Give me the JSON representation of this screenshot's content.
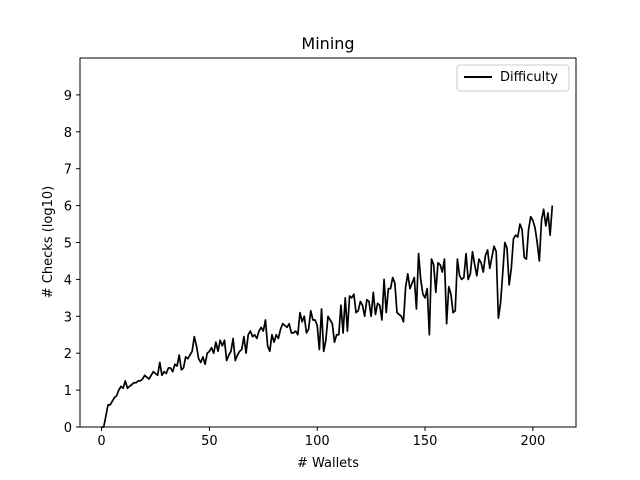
{
  "chart_data": {
    "type": "line",
    "title": "Mining",
    "xlabel": "# Wallets",
    "ylabel": "# Checks (log10)",
    "xlim": [
      -10,
      220
    ],
    "ylim": [
      0,
      10
    ],
    "xticks": [
      0,
      50,
      100,
      150,
      200
    ],
    "yticks": [
      0,
      1,
      2,
      3,
      4,
      5,
      6,
      7,
      8,
      9
    ],
    "grid": false,
    "legend_position": "upper-right",
    "line_color": "#000000",
    "series": [
      {
        "name": "Difficulty",
        "x": [
          0,
          1,
          2,
          3,
          4,
          5,
          6,
          7,
          8,
          9,
          10,
          11,
          12,
          13,
          14,
          15,
          16,
          17,
          18,
          19,
          20,
          21,
          22,
          23,
          24,
          25,
          26,
          27,
          28,
          29,
          30,
          31,
          32,
          33,
          34,
          35,
          36,
          37,
          38,
          39,
          40,
          41,
          42,
          43,
          44,
          45,
          46,
          47,
          48,
          49,
          50,
          51,
          52,
          53,
          54,
          55,
          56,
          57,
          58,
          59,
          60,
          61,
          62,
          63,
          64,
          65,
          66,
          67,
          68,
          69,
          70,
          71,
          72,
          73,
          74,
          75,
          76,
          77,
          78,
          79,
          80,
          81,
          82,
          83,
          84,
          85,
          86,
          87,
          88,
          89,
          90,
          91,
          92,
          93,
          94,
          95,
          96,
          97,
          98,
          99,
          100,
          101,
          102,
          103,
          104,
          105,
          106,
          107,
          108,
          109,
          110,
          111,
          112,
          113,
          114,
          115,
          116,
          117,
          118,
          119,
          120,
          121,
          122,
          123,
          124,
          125,
          126,
          127,
          128,
          129,
          130,
          131,
          132,
          133,
          134,
          135,
          136,
          137,
          138,
          139,
          140,
          141,
          142,
          143,
          144,
          145,
          146,
          147,
          148,
          149,
          150,
          151,
          152,
          153,
          154,
          155,
          156,
          157,
          158,
          159,
          160,
          161,
          162,
          163,
          164,
          165,
          166,
          167,
          168,
          169,
          170,
          171,
          172,
          173,
          174,
          175,
          176,
          177,
          178,
          179,
          180,
          181,
          182,
          183,
          184,
          185,
          186,
          187,
          188,
          189,
          190,
          191,
          192,
          193,
          194,
          195,
          196,
          197,
          198,
          199,
          200,
          201,
          202,
          203,
          204,
          205,
          206,
          207,
          208,
          209
        ],
        "values": [
          0.0,
          0.0,
          0.3,
          0.6,
          0.6,
          0.7,
          0.8,
          0.85,
          1.0,
          1.1,
          1.05,
          1.25,
          1.05,
          1.1,
          1.15,
          1.2,
          1.2,
          1.25,
          1.25,
          1.3,
          1.4,
          1.35,
          1.3,
          1.4,
          1.5,
          1.45,
          1.4,
          1.75,
          1.4,
          1.5,
          1.45,
          1.6,
          1.6,
          1.5,
          1.7,
          1.65,
          1.95,
          1.55,
          1.6,
          1.9,
          1.85,
          1.95,
          2.05,
          2.45,
          2.2,
          1.85,
          1.75,
          1.9,
          1.7,
          2.0,
          2.05,
          2.15,
          2.0,
          2.3,
          2.05,
          2.35,
          2.2,
          2.35,
          1.8,
          1.95,
          2.05,
          2.4,
          1.8,
          1.95,
          2.05,
          2.1,
          2.45,
          2.0,
          2.5,
          2.6,
          2.45,
          2.5,
          2.4,
          2.6,
          2.7,
          2.6,
          2.9,
          2.2,
          2.05,
          2.5,
          2.3,
          2.5,
          2.4,
          2.65,
          2.8,
          2.75,
          2.7,
          2.8,
          2.55,
          2.55,
          2.6,
          2.5,
          3.1,
          2.85,
          3.0,
          2.55,
          2.65,
          3.15,
          2.9,
          2.9,
          2.75,
          2.1,
          3.2,
          2.05,
          2.35,
          3.0,
          2.9,
          2.8,
          2.3,
          2.5,
          2.5,
          3.3,
          2.55,
          3.5,
          2.6,
          3.55,
          3.5,
          3.6,
          3.1,
          3.15,
          3.4,
          3.3,
          3.0,
          3.45,
          3.4,
          3.0,
          3.65,
          3.05,
          3.35,
          3.3,
          2.9,
          4.0,
          3.1,
          3.75,
          3.75,
          4.05,
          3.9,
          3.1,
          3.05,
          3.0,
          2.85,
          3.8,
          4.15,
          3.75,
          3.9,
          4.05,
          3.2,
          4.7,
          4.0,
          3.6,
          3.5,
          3.75,
          2.5,
          4.55,
          4.4,
          3.65,
          4.45,
          4.4,
          4.2,
          4.55,
          2.8,
          3.8,
          3.6,
          3.1,
          3.15,
          4.55,
          4.1,
          4.0,
          4.05,
          4.7,
          4.0,
          4.15,
          4.75,
          4.4,
          4.1,
          4.55,
          4.45,
          4.2,
          4.65,
          4.8,
          4.3,
          4.6,
          4.9,
          4.75,
          2.95,
          3.35,
          4.15,
          5.0,
          4.85,
          3.85,
          4.3,
          5.1,
          5.2,
          5.15,
          5.5,
          5.35,
          4.6,
          4.55,
          5.35,
          5.7,
          5.6,
          5.4,
          5.0,
          4.5,
          5.6,
          5.9,
          5.45,
          5.8,
          5.2,
          6.0
        ]
      }
    ]
  }
}
